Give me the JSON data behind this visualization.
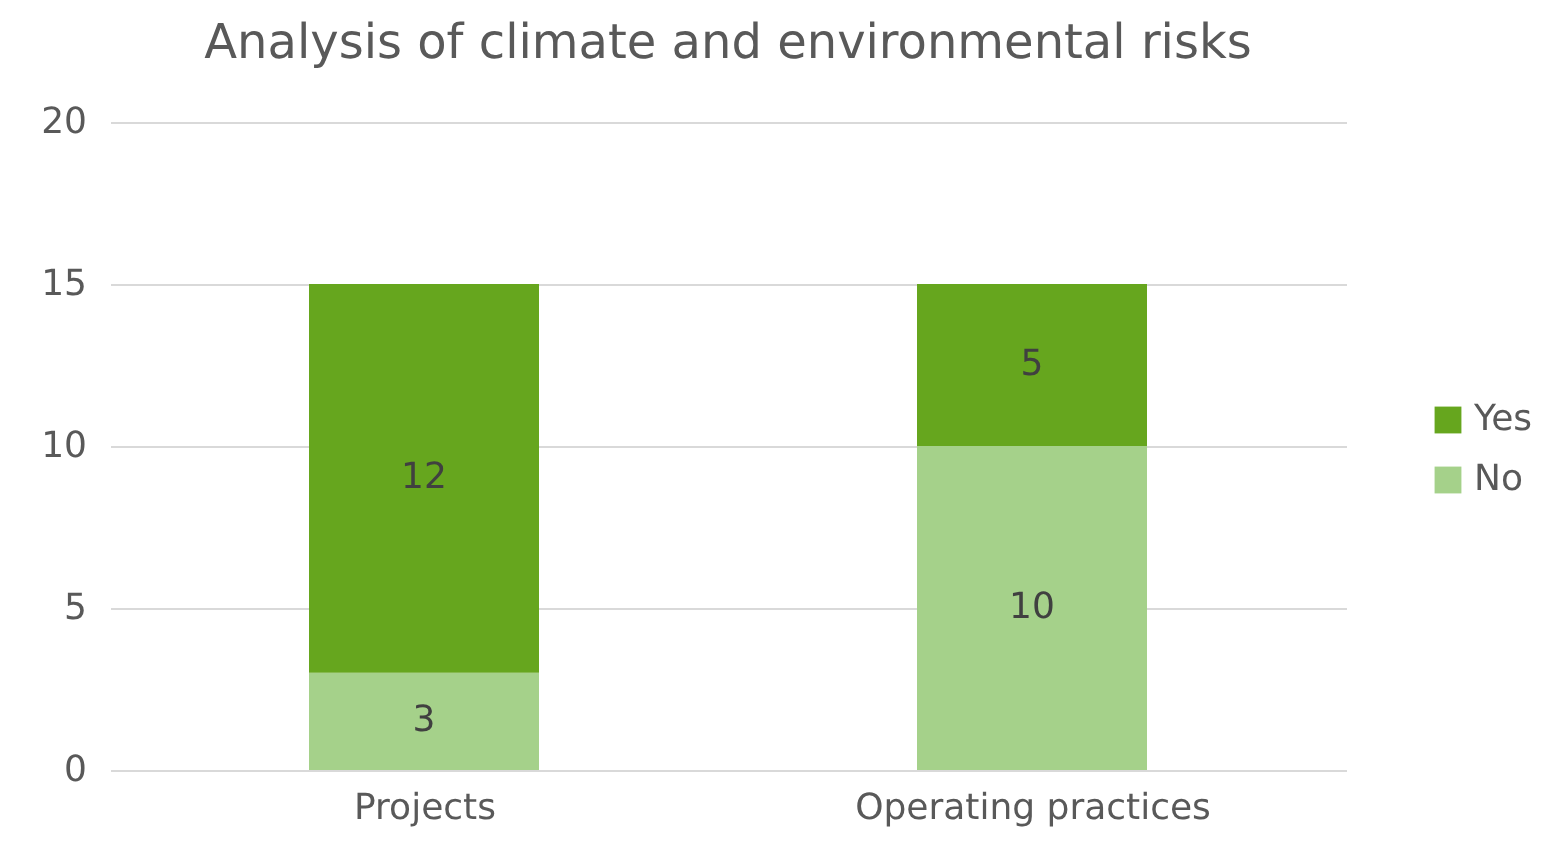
{
  "chart_data": {
    "type": "bar",
    "title": "Analysis of climate and environmental risks",
    "categories": [
      "Projects",
      "Operating practices"
    ],
    "stacked": true,
    "series": [
      {
        "name": "No",
        "color": "#a5d18a",
        "values": [
          3,
          10
        ]
      },
      {
        "name": "Yes",
        "color": "#66a61e",
        "values": [
          12,
          5
        ]
      }
    ],
    "ylim": [
      0,
      20
    ],
    "yticks": [
      0,
      5,
      10,
      15,
      20
    ],
    "grid": "y",
    "legend": "right",
    "data_labels": true
  }
}
